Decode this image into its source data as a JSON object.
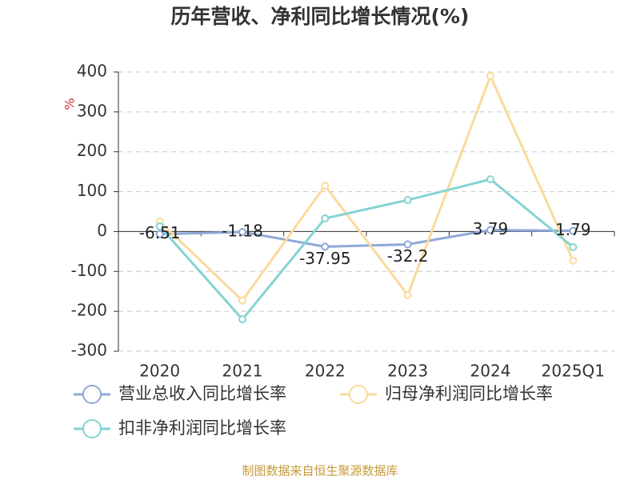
{
  "chart_data": {
    "type": "line",
    "title": "历年营收、净利同比增长情况(%)",
    "y_label": "%",
    "categories": [
      "2020",
      "2021",
      "2022",
      "2023",
      "2024",
      "2025Q1"
    ],
    "series": [
      {
        "name": "营业总收入同比增长率",
        "color": "#8fa8d8",
        "values": [
          -6.51,
          -1.18,
          -37.95,
          -32.2,
          3.79,
          1.79
        ],
        "show_labels": true
      },
      {
        "name": "归母净利润同比增长率",
        "color": "#fada9c",
        "values": [
          25,
          -173,
          115,
          -159,
          390,
          -73
        ],
        "show_labels": false
      },
      {
        "name": "扣非净利润同比增长率",
        "color": "#86d3d3",
        "values": [
          13,
          -220,
          33,
          79,
          131,
          -39
        ],
        "show_labels": false
      }
    ],
    "ylim": [
      -300,
      400
    ],
    "yticks": [
      -300,
      -200,
      -100,
      0,
      100,
      200,
      300,
      400
    ],
    "grid": true,
    "legend": "bottom",
    "source": "制图数据来自恒生聚源数据库"
  }
}
